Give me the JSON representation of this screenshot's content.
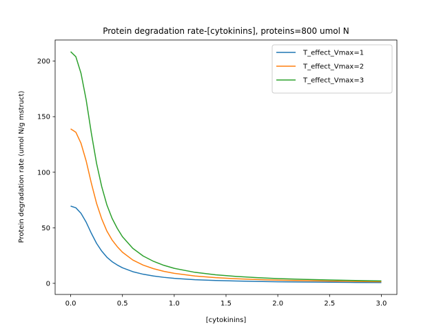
{
  "chart_data": {
    "type": "line",
    "title": "Protein degradation rate-[cytokinins], proteins=800 umol N",
    "xlabel": "[cytokinins]",
    "ylabel": "Protein degradation rate (umol N/g mstruct)",
    "xlim": [
      -0.15,
      3.15
    ],
    "ylim": [
      -10,
      219
    ],
    "x_ticks": [
      0.0,
      0.5,
      1.0,
      1.5,
      2.0,
      2.5,
      3.0
    ],
    "x_tick_labels": [
      "0.0",
      "0.5",
      "1.0",
      "1.5",
      "2.0",
      "2.5",
      "3.0"
    ],
    "y_ticks": [
      0,
      50,
      100,
      150,
      200
    ],
    "y_tick_labels": [
      "0",
      "50",
      "100",
      "150",
      "200"
    ],
    "grid": false,
    "legend_position": "top-right",
    "x": [
      0,
      0.05,
      0.1,
      0.15,
      0.2,
      0.25,
      0.3,
      0.35,
      0.4,
      0.45,
      0.5,
      0.6,
      0.7,
      0.8,
      0.9,
      1.0,
      1.2,
      1.4,
      1.6,
      1.8,
      2.0,
      2.25,
      2.5,
      2.75,
      3.0
    ],
    "series": [
      {
        "name": "T_effect_Vmax=1",
        "color": "#1f77b4",
        "values": [
          69.5,
          68.0,
          63.0,
          55.0,
          45.0,
          36.0,
          29.0,
          23.5,
          19.5,
          16.5,
          14.0,
          10.5,
          8.2,
          6.6,
          5.4,
          4.5,
          3.3,
          2.6,
          2.1,
          1.7,
          1.4,
          1.2,
          1.0,
          0.8,
          0.7
        ]
      },
      {
        "name": "T_effect_Vmax=2",
        "color": "#ff7f0e",
        "values": [
          139.0,
          136.0,
          126.0,
          110.0,
          90.0,
          72.0,
          58.0,
          47.0,
          39.0,
          33.0,
          28.0,
          21.0,
          16.4,
          13.2,
          10.8,
          9.0,
          6.6,
          5.1,
          4.1,
          3.4,
          2.9,
          2.4,
          2.0,
          1.7,
          1.5
        ]
      },
      {
        "name": "T_effect_Vmax=3",
        "color": "#2ca02c",
        "values": [
          208.5,
          204.0,
          189.0,
          165.0,
          135.0,
          108.0,
          87.0,
          70.5,
          58.5,
          49.5,
          42.0,
          31.5,
          24.6,
          19.8,
          16.2,
          13.5,
          9.9,
          7.7,
          6.2,
          5.1,
          4.3,
          3.6,
          3.0,
          2.6,
          2.2
        ]
      }
    ]
  }
}
